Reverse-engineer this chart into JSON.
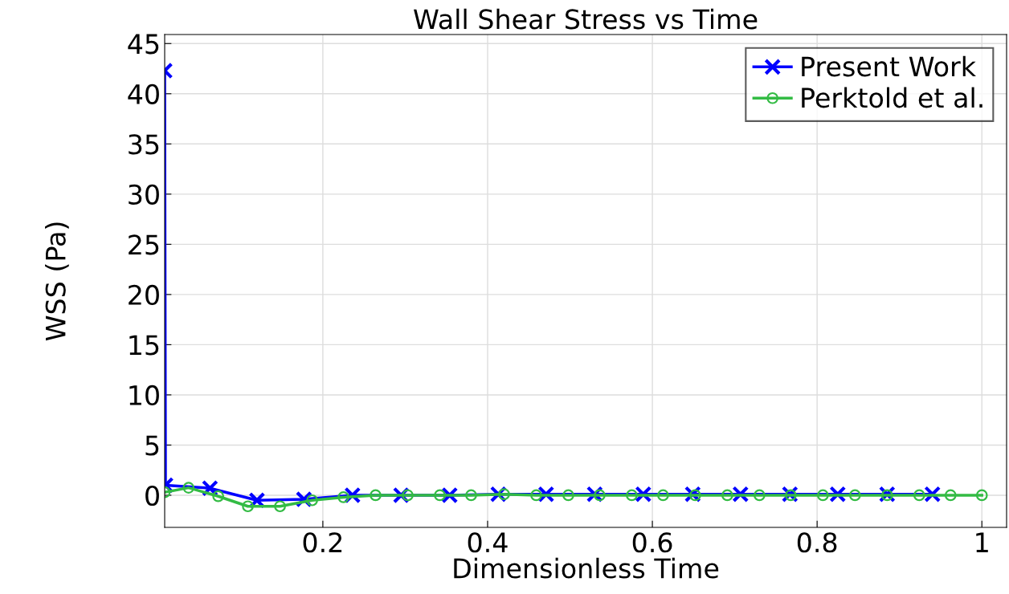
{
  "chart_data": {
    "type": "line",
    "title": "Wall Shear Stress vs Time",
    "xlabel": "Dimensionless Time",
    "ylabel": "WSS (Pa)",
    "xlim": [
      0.008,
      1.03
    ],
    "ylim": [
      -3.2,
      45.9
    ],
    "xticks": [
      0.2,
      0.4,
      0.6,
      0.8,
      1
    ],
    "yticks": [
      0,
      5,
      10,
      15,
      20,
      25,
      30,
      35,
      40,
      45
    ],
    "grid": true,
    "legend": "top right",
    "series": [
      {
        "name": "Present Work",
        "color": "#0000ff",
        "marker": "cross",
        "x": [
          0.008,
          0.009,
          0.063,
          0.12,
          0.177,
          0.236,
          0.295,
          0.354,
          0.413,
          0.471,
          0.53,
          0.589,
          0.649,
          0.707,
          0.767,
          0.825,
          0.885,
          0.94
        ],
        "values": [
          42.3,
          1.0,
          0.7,
          -0.5,
          -0.4,
          0.0,
          0.0,
          0.0,
          0.1,
          0.1,
          0.1,
          0.1,
          0.1,
          0.1,
          0.1,
          0.1,
          0.1,
          0.1
        ]
      },
      {
        "name": "Perktold et al.",
        "color": "#33bb44",
        "marker": "circle",
        "x": [
          0.008,
          0.037,
          0.073,
          0.109,
          0.148,
          0.187,
          0.225,
          0.264,
          0.303,
          0.342,
          0.38,
          0.42,
          0.459,
          0.498,
          0.536,
          0.575,
          0.613,
          0.652,
          0.691,
          0.73,
          0.768,
          0.807,
          0.846,
          0.885,
          0.924,
          0.962,
          1.0
        ],
        "values": [
          0.3,
          0.75,
          -0.1,
          -1.1,
          -1.1,
          -0.5,
          -0.2,
          0.0,
          0.0,
          0.0,
          0.0,
          0.1,
          0.0,
          0.0,
          0.0,
          0.0,
          0.0,
          0.0,
          0.0,
          0.0,
          0.0,
          0.0,
          0.0,
          0.0,
          0.0,
          0.0,
          0.0
        ]
      }
    ]
  }
}
